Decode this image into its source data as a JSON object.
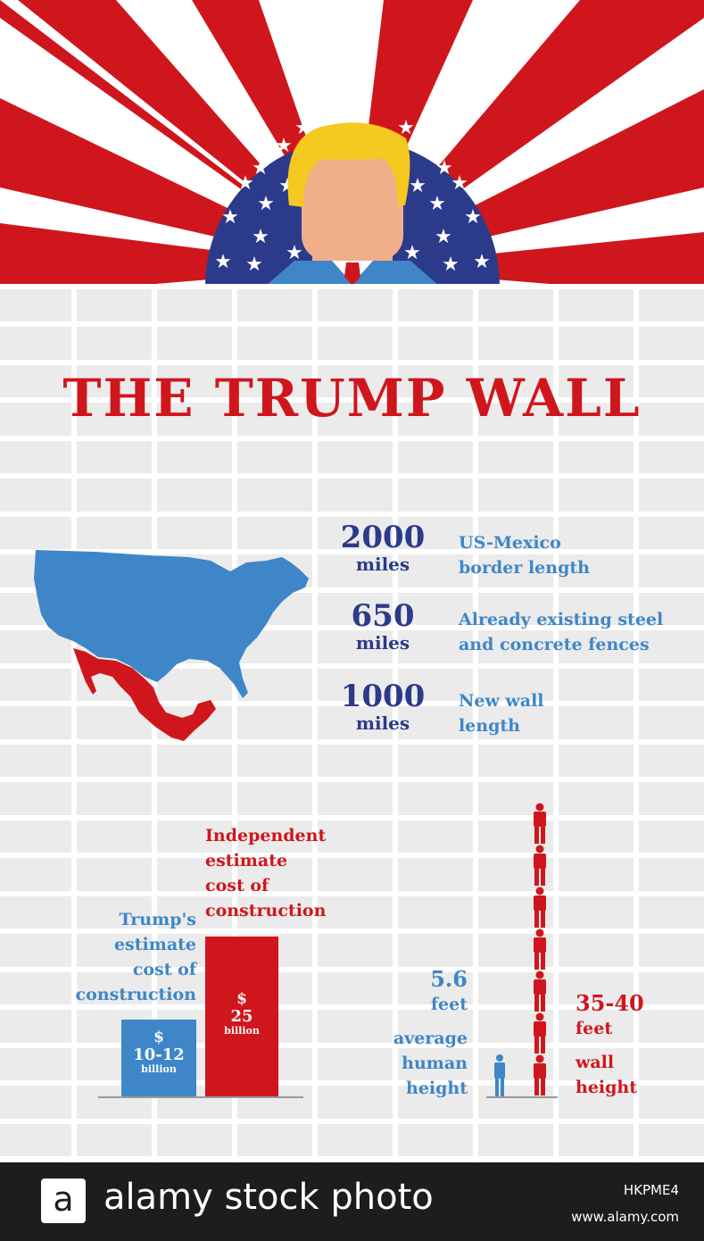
{
  "header": {
    "colors": {
      "red": "#d0161d",
      "white": "#ffffff",
      "navy": "#2c3a8a",
      "hair": "#f5c91f",
      "skin": "#f0ae8b",
      "suit": "#3f86c8",
      "tie": "#d0161d"
    }
  },
  "title": "THE TRUMP WALL",
  "stats": [
    {
      "number": "2000",
      "unit": "miles",
      "desc1": "US-Mexico",
      "desc2": "border length"
    },
    {
      "number": "650",
      "unit": "miles",
      "desc1": "Already existing steel",
      "desc2": "and concrete fences"
    },
    {
      "number": "1000",
      "unit": "miles",
      "desc1": "New wall",
      "desc2": "length"
    }
  ],
  "map": {
    "usa_color": "#3f86c8",
    "mexico_color": "#d0161d"
  },
  "cost": {
    "trump_label": [
      "Trump's",
      "estimate",
      "cost of",
      "construction"
    ],
    "independent_label": [
      "Independent",
      "estimate",
      "cost of",
      "construction"
    ],
    "trump_bar": {
      "dollar": "$",
      "value": "10-12",
      "unit": "billion",
      "color": "#3f86c8"
    },
    "independent_bar": {
      "dollar": "$",
      "value": "25",
      "unit": "billion",
      "color": "#d0161d"
    }
  },
  "height": {
    "human_value": "5.6",
    "human_unit": "feet",
    "human_label": [
      "average",
      "human",
      "height"
    ],
    "wall_value": "35-40",
    "wall_unit": "feet",
    "wall_label": [
      "wall",
      "height"
    ]
  },
  "footer": {
    "logo_letter": "a",
    "brand": "alamy stock photo",
    "code": "HKPME4",
    "url": "www.alamy.com"
  }
}
